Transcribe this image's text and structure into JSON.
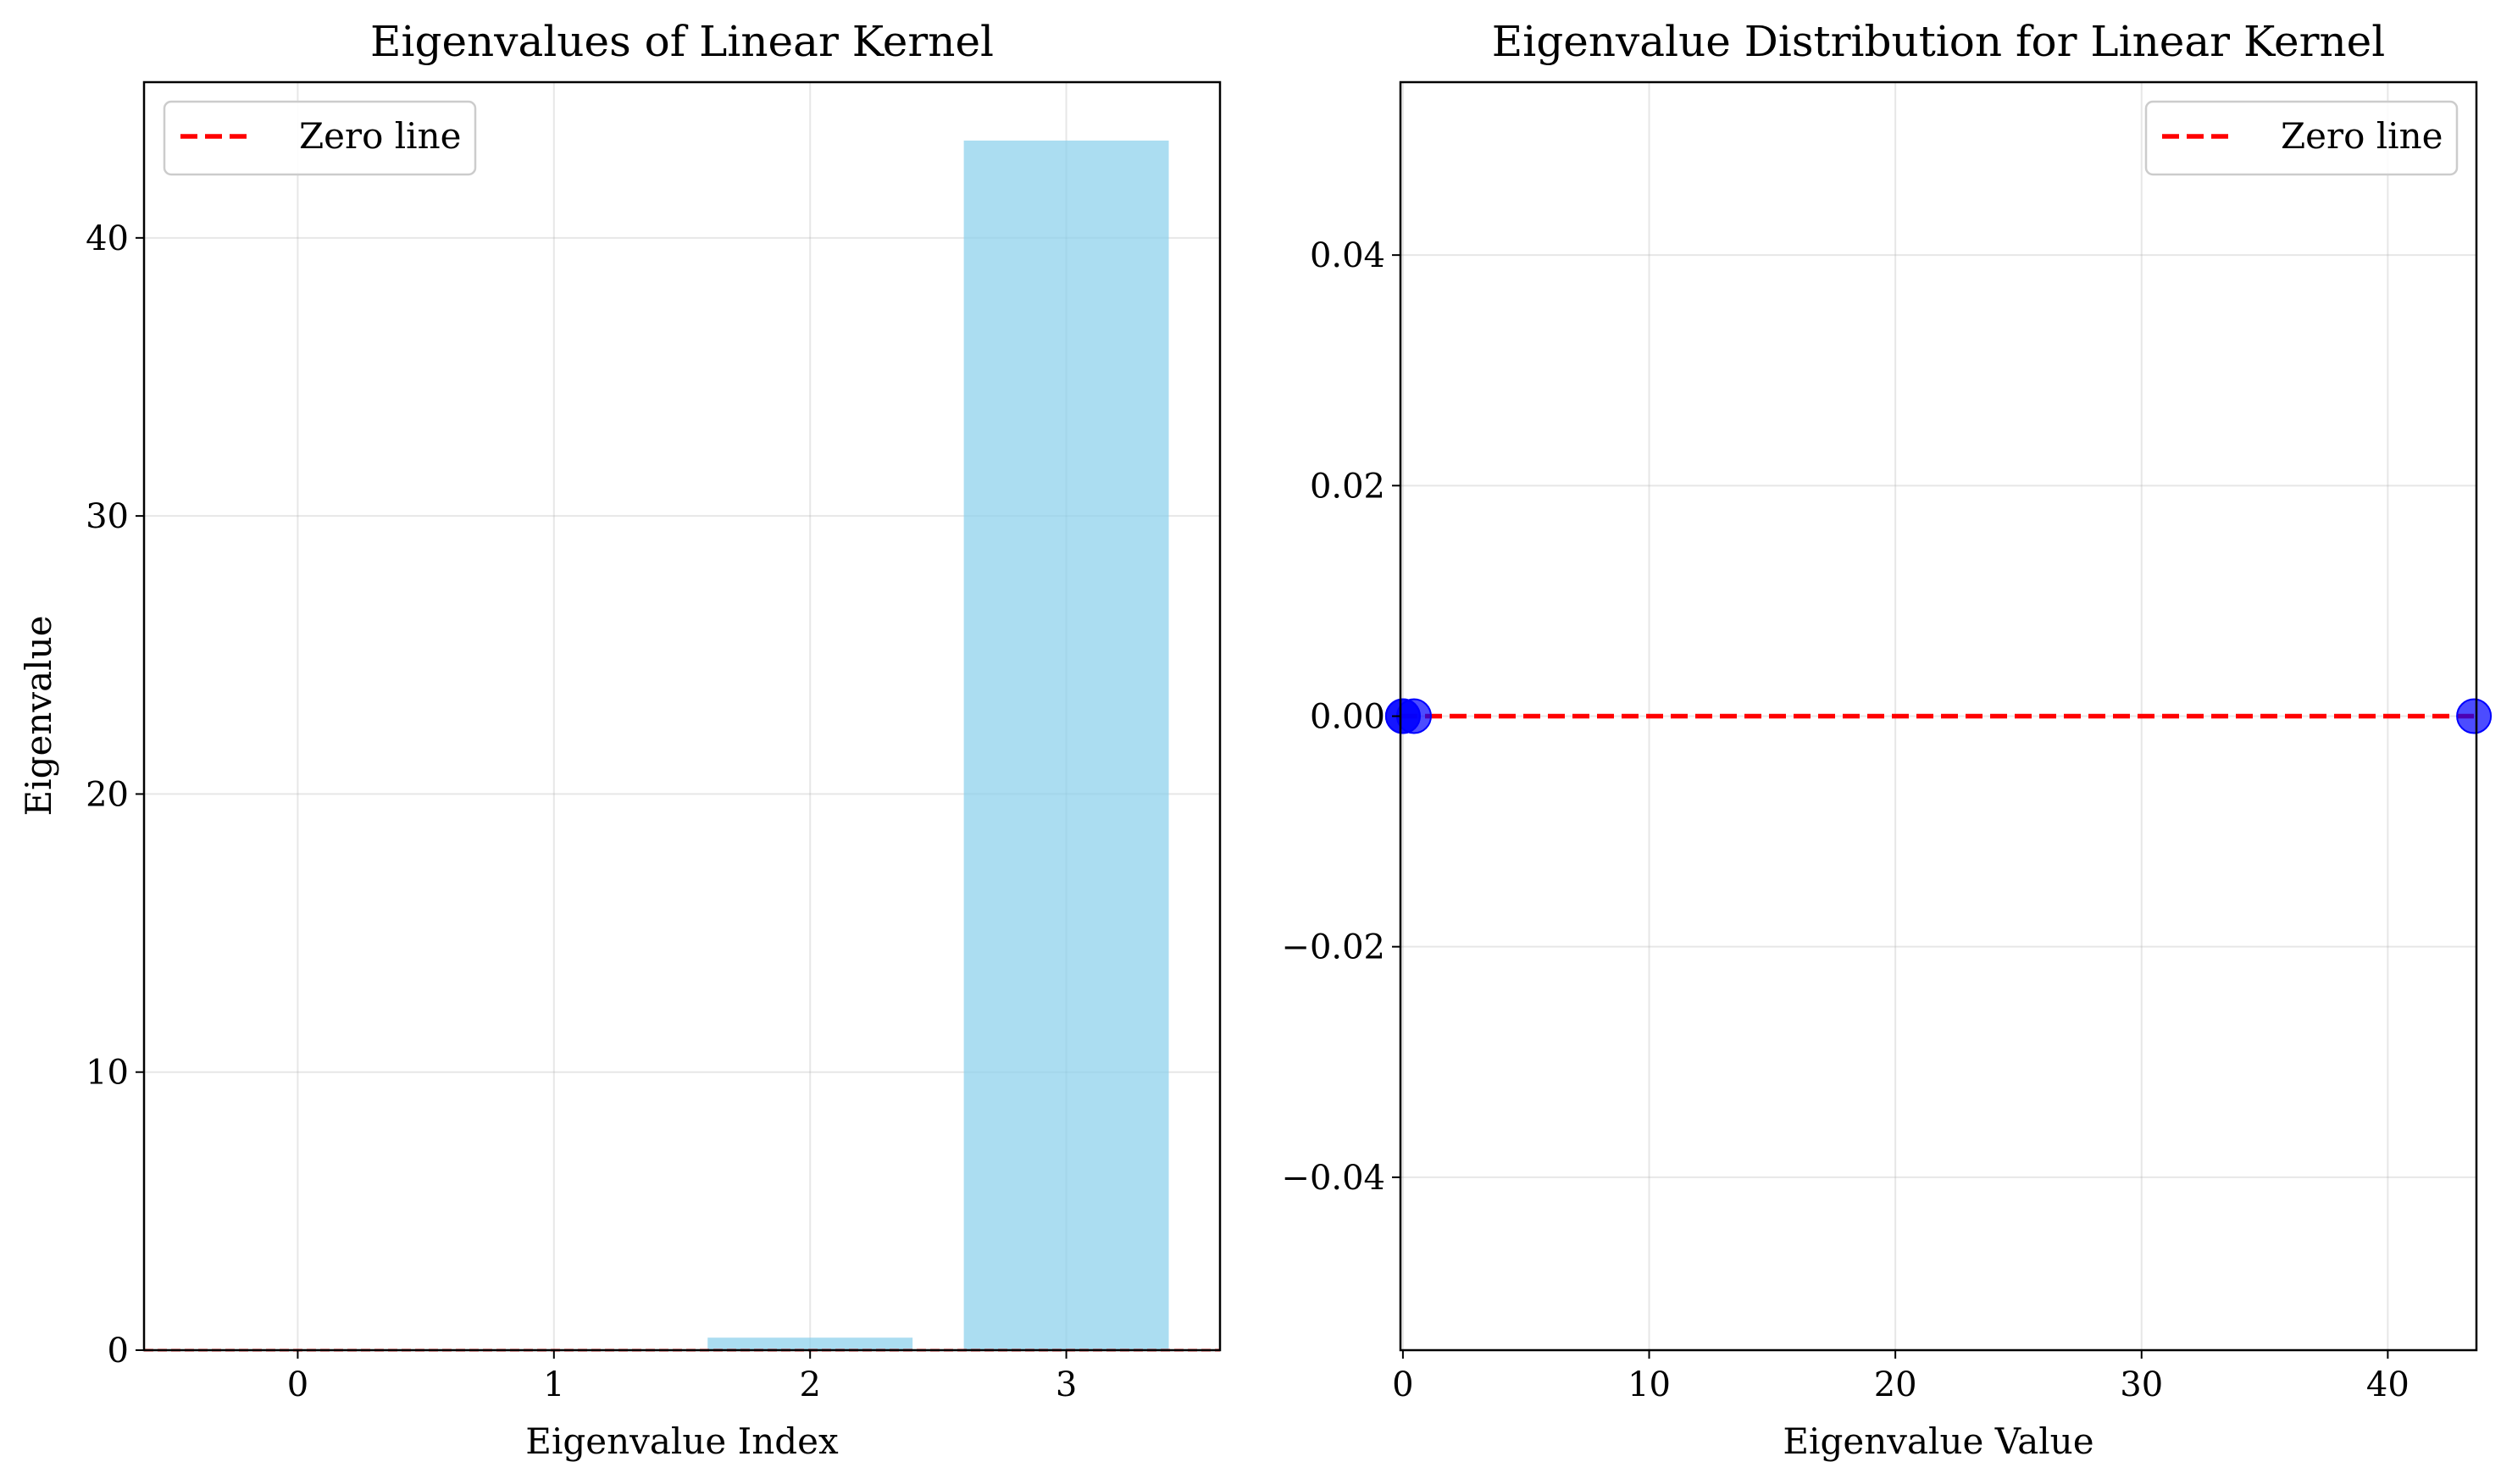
{
  "chart_data": [
    {
      "type": "bar",
      "title": "Eigenvalues of Linear Kernel",
      "xlabel": "Eigenvalue Index",
      "ylabel": "Eigenvalue",
      "categories": [
        0,
        1,
        2,
        3
      ],
      "values": [
        0.0,
        0.0,
        0.45,
        43.5
      ],
      "xlim": [
        -0.6,
        3.6
      ],
      "ylim": [
        0,
        45.6
      ],
      "xticks": [
        0,
        1,
        2,
        3
      ],
      "yticks": [
        0,
        10,
        20,
        30,
        40
      ],
      "bar_color": "#87ceeb",
      "bar_opacity": 0.7,
      "reference_line": {
        "y": 0,
        "color": "#ff0000",
        "style": "dashed",
        "label": "Zero line"
      },
      "grid": true,
      "legend_position": "top-left"
    },
    {
      "type": "scatter",
      "title": "Eigenvalue Distribution for Linear Kernel",
      "xlabel": "Eigenvalue Value",
      "ylabel": "",
      "points": [
        {
          "x": 0.0,
          "y": 0
        },
        {
          "x": 0.0,
          "y": 0
        },
        {
          "x": 0.45,
          "y": 0
        },
        {
          "x": 43.5,
          "y": 0
        }
      ],
      "xlim": [
        -0.1,
        43.6
      ],
      "ylim": [
        -0.055,
        0.055
      ],
      "xticks": [
        0,
        10,
        20,
        30,
        40
      ],
      "yticks": [
        -0.04,
        -0.02,
        0.0,
        0.02,
        0.04
      ],
      "ytick_labels": [
        "−0.04",
        "−0.02",
        "0.00",
        "0.02",
        "0.04"
      ],
      "point_color": "#0000ff",
      "point_opacity": 0.7,
      "reference_line": {
        "y": 0,
        "color": "#ff0000",
        "style": "dashed",
        "label": "Zero line"
      },
      "grid": true,
      "legend_position": "top-right"
    }
  ]
}
